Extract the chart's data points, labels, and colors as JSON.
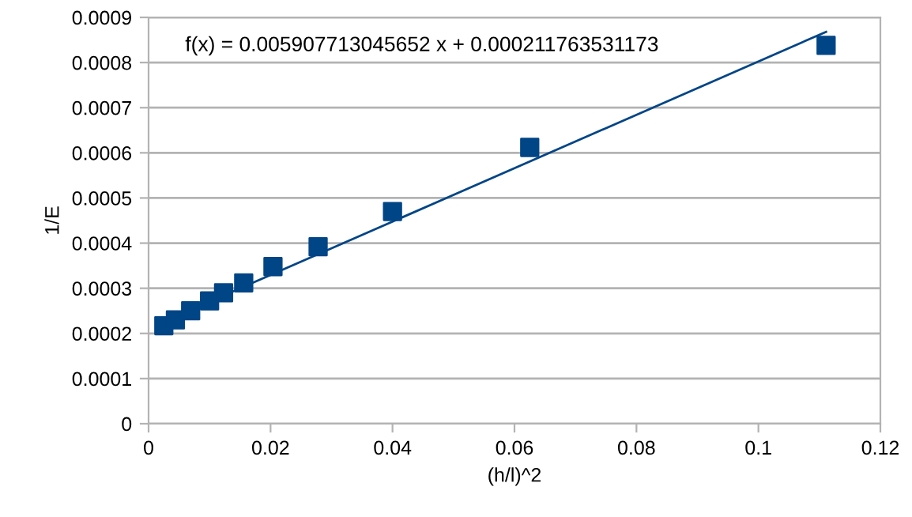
{
  "chart_data": {
    "type": "scatter",
    "xlabel": "(h/l)^2",
    "ylabel": "1/E",
    "annotations": [
      "f(x) = 0.005907713045652 x + 0.000211763531173"
    ],
    "series": [
      {
        "color": "#004586",
        "marker": "square",
        "x": [
          0.0025,
          0.0044,
          0.0069,
          0.01,
          0.0123,
          0.0156,
          0.0204,
          0.0278,
          0.04,
          0.0625,
          0.1111
        ],
        "values": [
          0.000217,
          0.00023,
          0.00025,
          0.000272,
          0.00029,
          0.000312,
          0.000348,
          0.000392,
          0.00047,
          0.000612,
          0.000838
        ]
      },
      {
        "type": "line",
        "color": "#004586",
        "marker": "none",
        "x": [
          0.0025,
          0.1111
        ],
        "values": [
          0.000226,
          0.000868
        ]
      }
    ],
    "xlim": [
      0,
      0.12
    ],
    "xticks": [
      0,
      0.02,
      0.04,
      0.06,
      0.08,
      0.1,
      0.12
    ],
    "ylim": [
      0,
      0.0009
    ],
    "yticks": [
      0,
      0.0001,
      0.0002,
      0.0003,
      0.0004,
      0.0005,
      0.0006,
      0.0007,
      0.0008,
      0.0009
    ],
    "grid": "y",
    "legend": false
  }
}
